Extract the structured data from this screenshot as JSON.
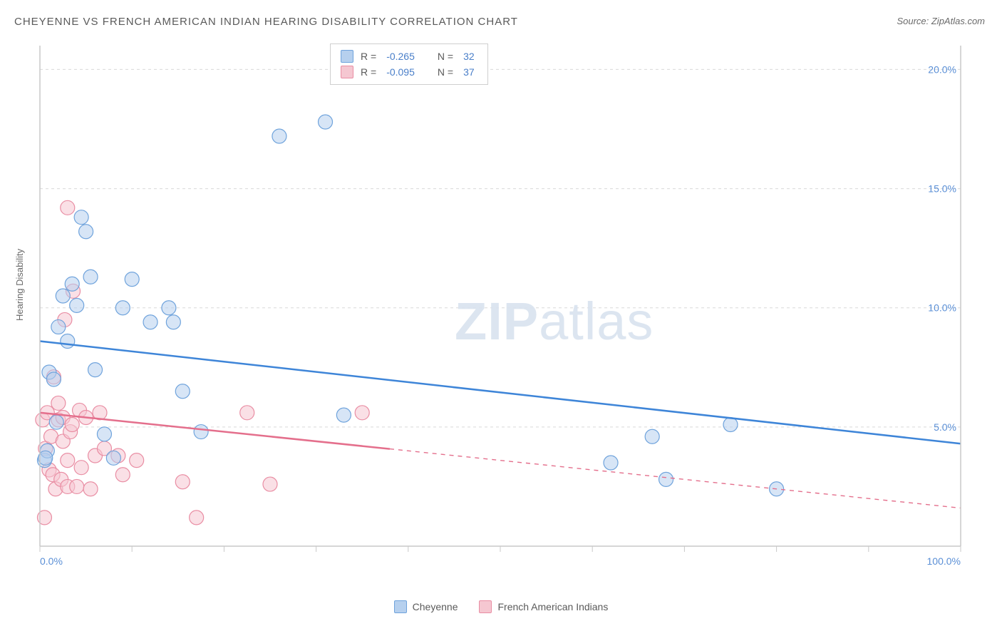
{
  "title": "CHEYENNE VS FRENCH AMERICAN INDIAN HEARING DISABILITY CORRELATION CHART",
  "source": "Source: ZipAtlas.com",
  "y_axis_label": "Hearing Disability",
  "watermark": {
    "strong": "ZIP",
    "light": "atlas"
  },
  "colors": {
    "series_a_fill": "#b6d0ee",
    "series_a_stroke": "#6fa3dc",
    "series_b_fill": "#f5c7d1",
    "series_b_stroke": "#e98da3",
    "trend_a": "#3e85d8",
    "trend_b": "#e46f8c",
    "grid": "#d9d9d9",
    "axis": "#c9c9c9",
    "tick_label": "#5a8fd6",
    "text": "#5a5a5a",
    "stat_val": "#4a7fc9",
    "background": "#ffffff"
  },
  "chart": {
    "type": "scatter",
    "xlim": [
      0,
      100
    ],
    "ylim": [
      0,
      21
    ],
    "x_ticks": [
      0,
      10,
      20,
      30,
      40,
      50,
      60,
      70,
      80,
      90,
      100
    ],
    "x_tick_labels": {
      "0": "0.0%",
      "100": "100.0%"
    },
    "y_ticks": [
      5,
      10,
      15,
      20
    ],
    "y_tick_labels": {
      "5": "5.0%",
      "10": "10.0%",
      "15": "15.0%",
      "20": "20.0%"
    },
    "marker_radius": 10,
    "marker_opacity": 0.55,
    "line_width": 2.5
  },
  "legend_top": [
    {
      "swatch": "a",
      "r_label": "R =",
      "r_value": "-0.265",
      "n_label": "N =",
      "n_value": "32"
    },
    {
      "swatch": "b",
      "r_label": "R =",
      "r_value": "-0.095",
      "n_label": "N =",
      "n_value": "37"
    }
  ],
  "legend_bottom": [
    {
      "swatch": "a",
      "label": "Cheyenne"
    },
    {
      "swatch": "b",
      "label": "French American Indians"
    }
  ],
  "series_a": {
    "name": "Cheyenne",
    "points": [
      [
        0.5,
        3.6
      ],
      [
        0.8,
        4.0
      ],
      [
        1.0,
        7.3
      ],
      [
        1.5,
        7.0
      ],
      [
        1.8,
        5.2
      ],
      [
        2.0,
        9.2
      ],
      [
        2.5,
        10.5
      ],
      [
        3.0,
        8.6
      ],
      [
        3.5,
        11.0
      ],
      [
        4.0,
        10.1
      ],
      [
        4.5,
        13.8
      ],
      [
        5.0,
        13.2
      ],
      [
        5.5,
        11.3
      ],
      [
        6.0,
        7.4
      ],
      [
        7.0,
        4.7
      ],
      [
        8.0,
        3.7
      ],
      [
        9.0,
        10.0
      ],
      [
        10.0,
        11.2
      ],
      [
        12.0,
        9.4
      ],
      [
        14.0,
        10.0
      ],
      [
        14.5,
        9.4
      ],
      [
        15.5,
        6.5
      ],
      [
        17.5,
        4.8
      ],
      [
        26.0,
        17.2
      ],
      [
        31.0,
        17.8
      ],
      [
        33.0,
        5.5
      ],
      [
        62.0,
        3.5
      ],
      [
        66.5,
        4.6
      ],
      [
        68.0,
        2.8
      ],
      [
        75.0,
        5.1
      ],
      [
        80.0,
        2.4
      ],
      [
        0.6,
        3.7
      ]
    ],
    "trend": {
      "x1": 0,
      "y1": 8.6,
      "x2": 100,
      "y2": 4.3,
      "solid_until_x": 100
    }
  },
  "series_b": {
    "name": "French American Indians",
    "points": [
      [
        0.3,
        5.3
      ],
      [
        0.5,
        1.2
      ],
      [
        0.6,
        4.1
      ],
      [
        0.8,
        5.6
      ],
      [
        1.0,
        3.2
      ],
      [
        1.2,
        4.6
      ],
      [
        1.4,
        3.0
      ],
      [
        1.5,
        7.1
      ],
      [
        1.7,
        2.4
      ],
      [
        2.0,
        5.3
      ],
      [
        2.0,
        6.0
      ],
      [
        2.3,
        2.8
      ],
      [
        2.5,
        5.4
      ],
      [
        2.5,
        4.4
      ],
      [
        2.7,
        9.5
      ],
      [
        3.0,
        3.6
      ],
      [
        3.0,
        2.5
      ],
      [
        3.0,
        14.2
      ],
      [
        3.3,
        4.8
      ],
      [
        3.5,
        5.1
      ],
      [
        3.6,
        10.7
      ],
      [
        4.0,
        2.5
      ],
      [
        4.3,
        5.7
      ],
      [
        4.5,
        3.3
      ],
      [
        5.0,
        5.4
      ],
      [
        5.5,
        2.4
      ],
      [
        6.0,
        3.8
      ],
      [
        6.5,
        5.6
      ],
      [
        7.0,
        4.1
      ],
      [
        8.5,
        3.8
      ],
      [
        9.0,
        3.0
      ],
      [
        10.5,
        3.6
      ],
      [
        15.5,
        2.7
      ],
      [
        17.0,
        1.2
      ],
      [
        22.5,
        5.6
      ],
      [
        25.0,
        2.6
      ],
      [
        35.0,
        5.6
      ]
    ],
    "trend": {
      "x1": 0,
      "y1": 5.6,
      "x2": 100,
      "y2": 1.6,
      "solid_until_x": 38
    }
  }
}
